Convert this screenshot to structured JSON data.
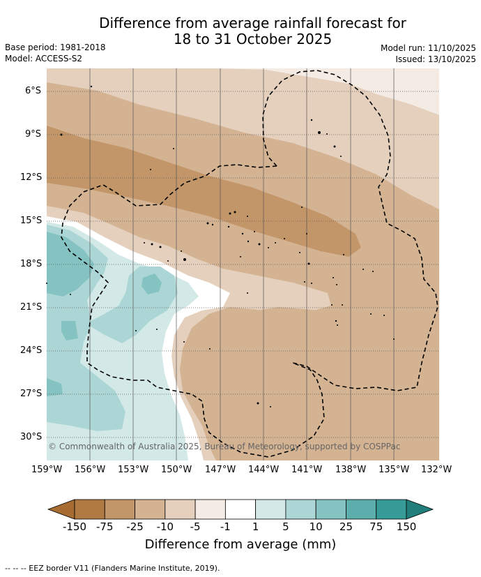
{
  "header": {
    "title_line1": "Difference from average rainfall forecast for",
    "title_line2": "18 to 31 October 2025",
    "base_period": "Base period: 1981-2018",
    "model": "Model: ACCESS-S2",
    "model_run": "Model run: 11/10/2025",
    "issued": "Issued: 13/10/2025"
  },
  "map": {
    "copyright": "© Commonwealth of Australia 2025, Bureau of Meteorology, supported by COSPPac",
    "lat_labels": [
      "6°S",
      "9°S",
      "12°S",
      "15°S",
      "18°S",
      "21°S",
      "24°S",
      "27°S",
      "30°S"
    ],
    "lon_labels": [
      "159°W",
      "156°W",
      "153°W",
      "150°W",
      "147°W",
      "144°W",
      "141°W",
      "138°W",
      "135°W",
      "132°W"
    ],
    "gridlines": "dotted latitude lines, solid longitude lines"
  },
  "colorbar": {
    "label": "Difference from average (mm)",
    "ticks": [
      "-150",
      "-75",
      "-25",
      "-10",
      "-5",
      "-1",
      "1",
      "5",
      "10",
      "25",
      "75",
      "150"
    ],
    "colors": [
      "#a66c31",
      "#b07a42",
      "#c3966a",
      "#d4b393",
      "#e4d0bd",
      "#f4ebe4",
      "#ffffff",
      "#d3e9e8",
      "#acd6d5",
      "#84c3c1",
      "#5baeab",
      "#369a97",
      "#227e7b"
    ],
    "extend": "both"
  },
  "footnote": "--  --  -- EEZ border V11 (Flanders Marine Institute, 2019)."
}
